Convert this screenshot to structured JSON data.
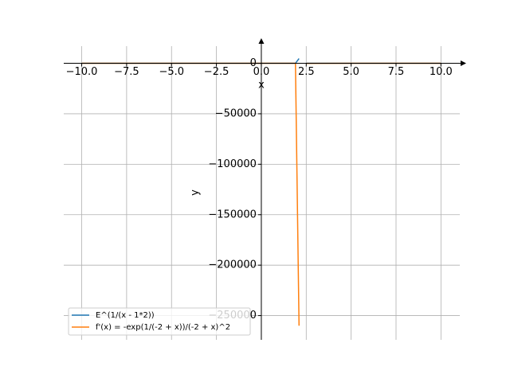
{
  "chart_data": {
    "type": "line",
    "xlabel": "x",
    "ylabel": "y",
    "x": [
      -10,
      -5,
      0,
      1.5,
      1.9,
      2.1,
      2.2,
      2.5,
      5,
      10
    ],
    "series": [
      {
        "name": "E^(1/(x - 1*2))",
        "color": "#1f77b4",
        "values": [
          0.92,
          0.87,
          0.61,
          0.14,
          0,
          4700,
          null,
          7.4,
          1.4,
          1.1
        ]
      },
      {
        "name": "f'(x) = -exp(1/(-2 + x))/(-2 + x)^2",
        "color": "#ff7f0e",
        "values": [
          0,
          0,
          0,
          -0.3,
          0,
          -260000,
          null,
          -29.6,
          -0.15,
          -0.02
        ]
      }
    ],
    "xlim": [
      -11,
      11.05
    ],
    "ylim": [
      -274000,
      17000
    ],
    "xticks": [
      {
        "value": -10,
        "label": "−10.0"
      },
      {
        "value": -7.5,
        "label": "−7.5"
      },
      {
        "value": -5,
        "label": "−5.0"
      },
      {
        "value": -2.5,
        "label": "−2.5"
      },
      {
        "value": 0,
        "label": "0.0"
      },
      {
        "value": 2.5,
        "label": "2.5"
      },
      {
        "value": 5,
        "label": "5.0"
      },
      {
        "value": 7.5,
        "label": "7.5"
      },
      {
        "value": 10,
        "label": "10.0"
      }
    ],
    "yticks": [
      0,
      {
        "value": -50000,
        "label": "−50000"
      },
      {
        "value": -100000,
        "label": "−100000"
      },
      {
        "value": -150000,
        "label": "−150000"
      },
      {
        "value": -200000,
        "label": "−200000"
      },
      {
        "value": -250000,
        "label": "−250000"
      }
    ],
    "grid": true,
    "legend": "lower left"
  }
}
